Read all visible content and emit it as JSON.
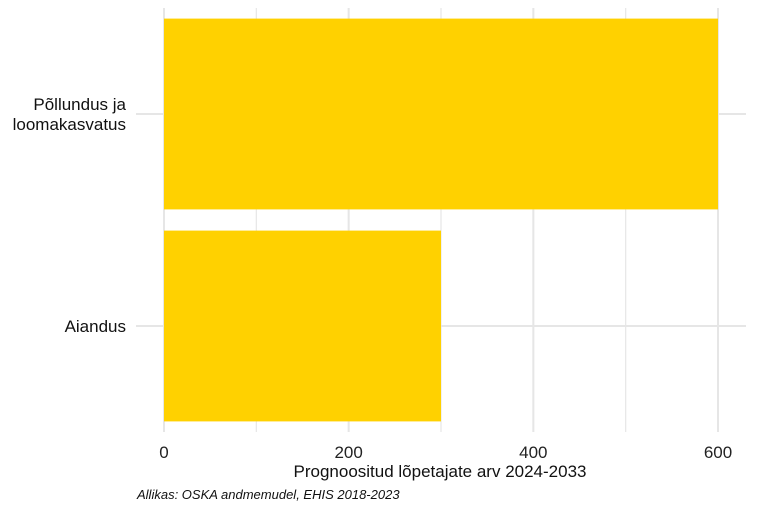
{
  "chart_data": {
    "type": "bar",
    "orientation": "horizontal",
    "categories": [
      [
        "Põllundus ja",
        "loomakasvatus"
      ],
      [
        "Aiandus"
      ]
    ],
    "values": [
      600,
      300
    ],
    "xlabel": "Prognoositud lõpetajate arv 2024-2033",
    "ylabel": "",
    "xlim": [
      0,
      630
    ],
    "xticks": [
      0,
      200,
      400,
      600
    ],
    "grid": true,
    "bar_color": "#FFD100"
  },
  "source": "Allikas: OSKA andmemudel, EHIS 2018-2023"
}
